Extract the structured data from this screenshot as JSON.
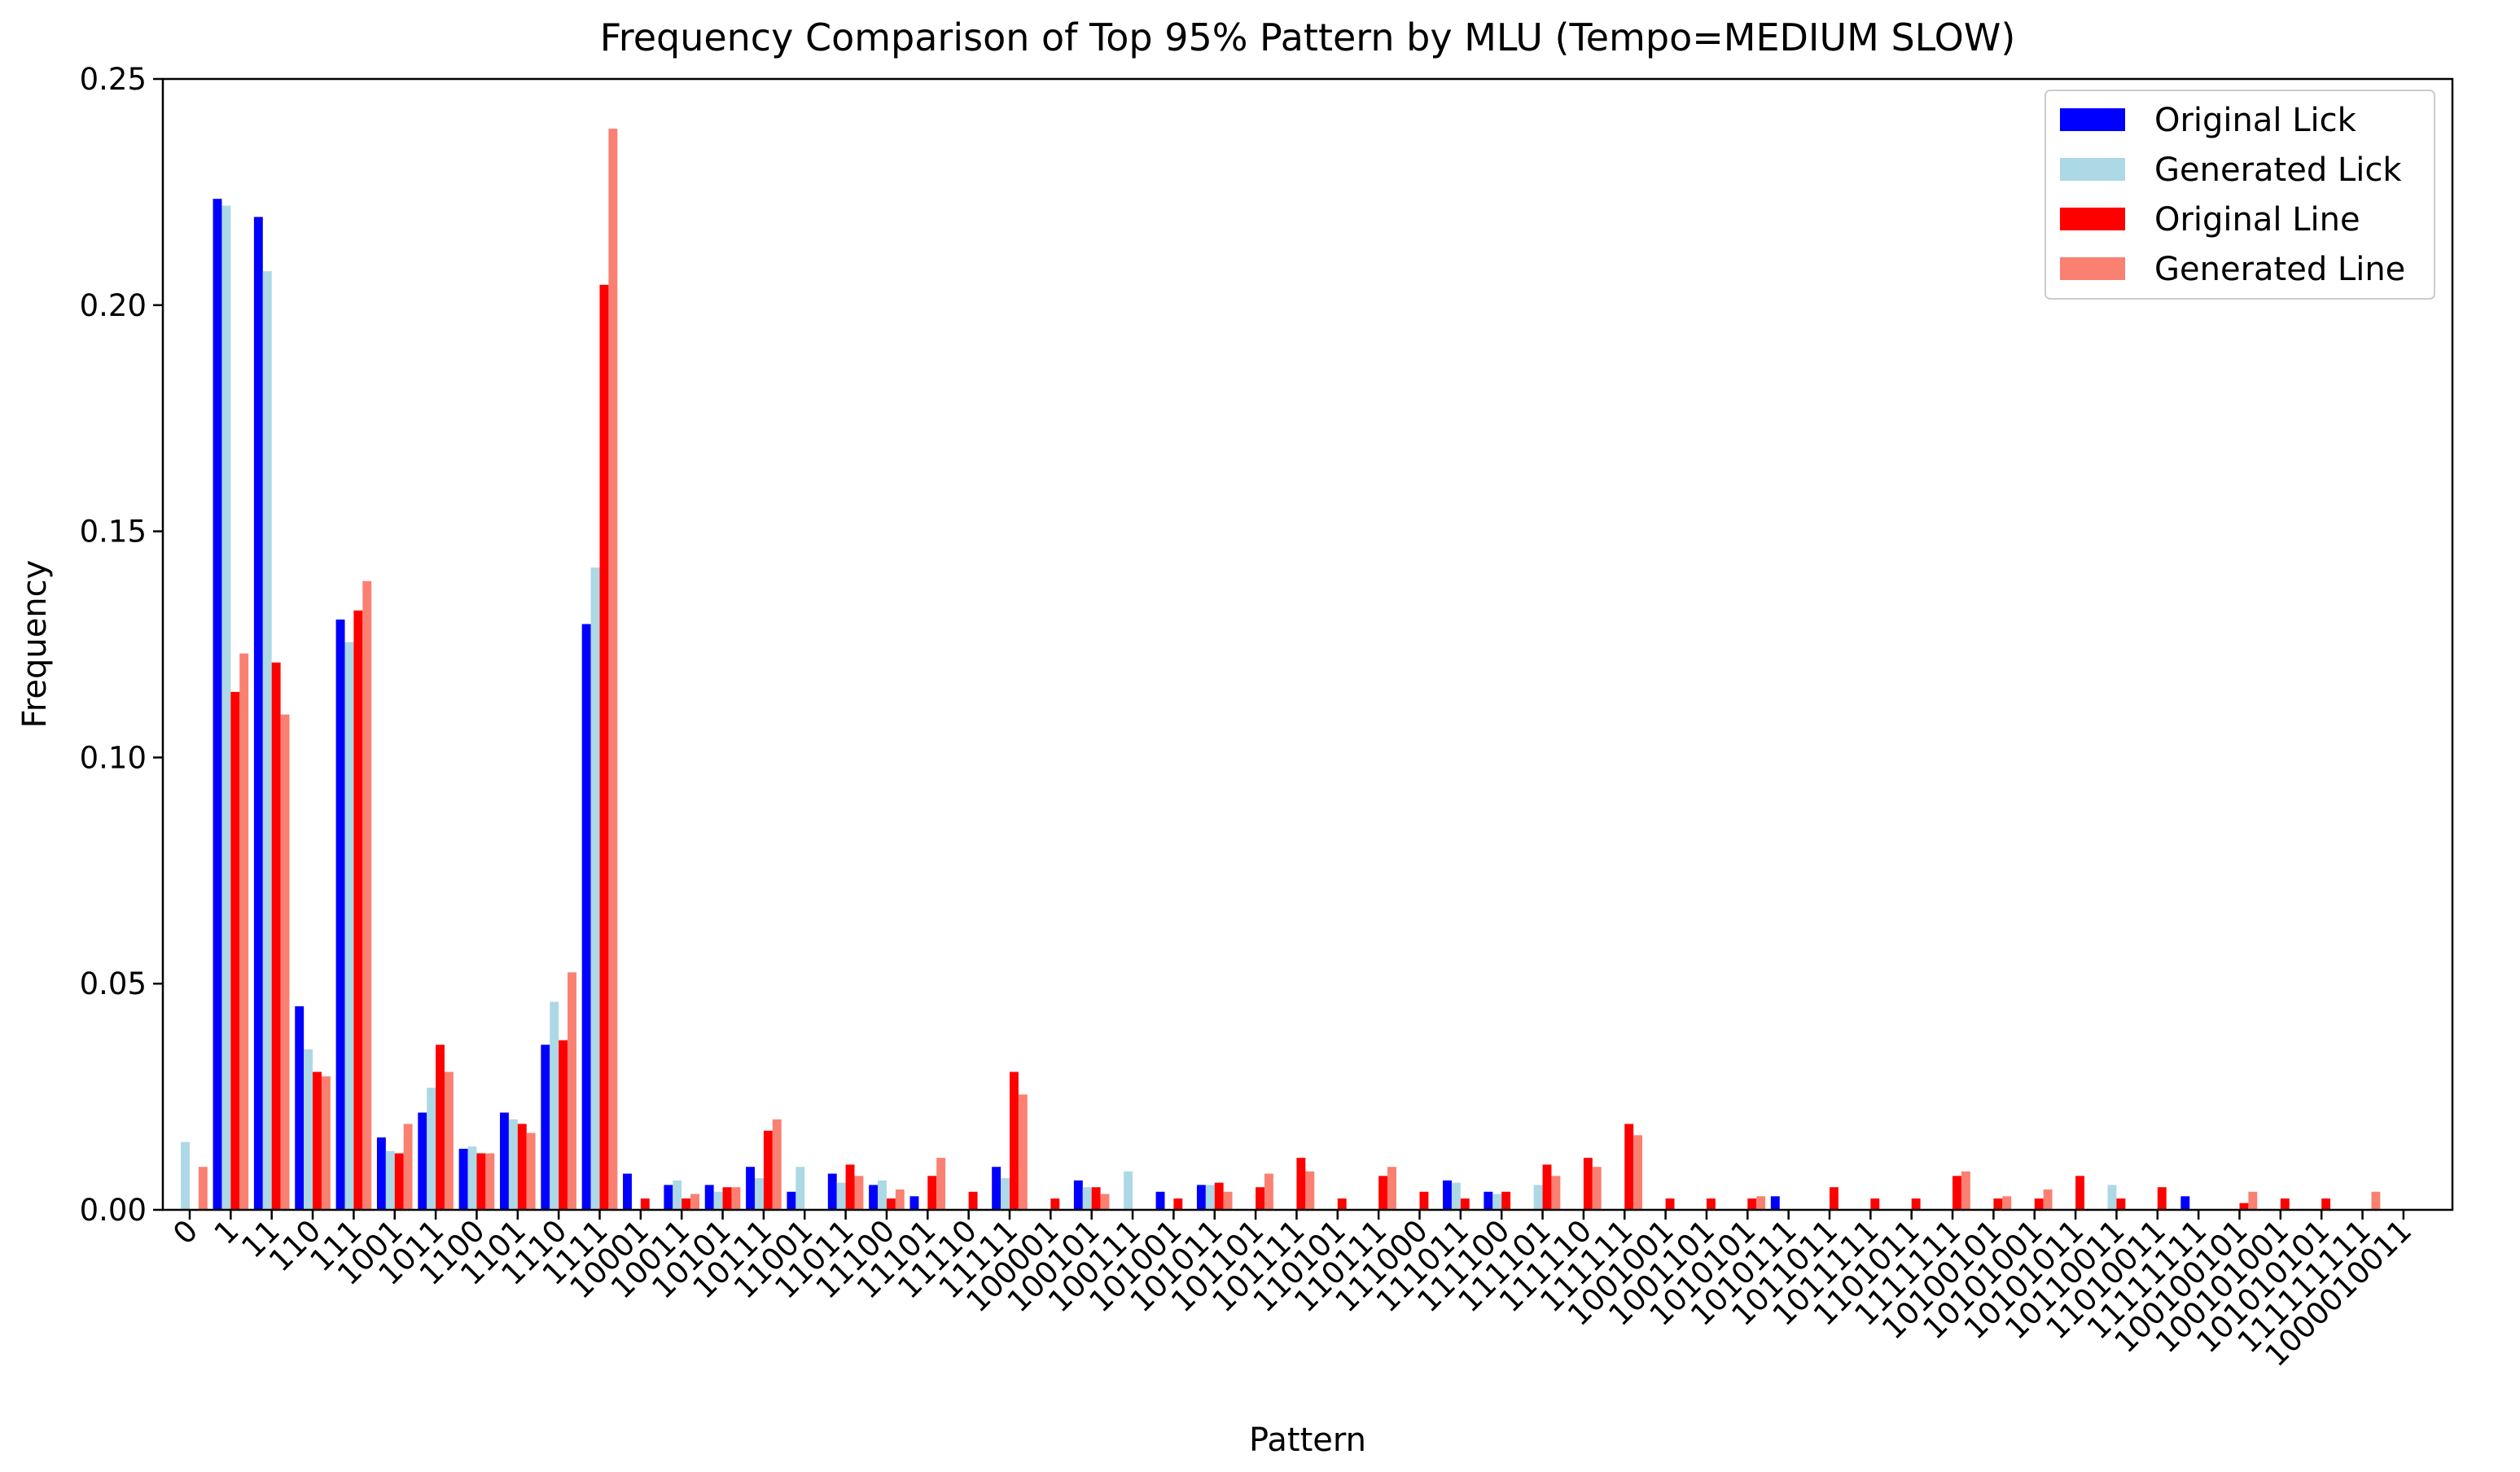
{
  "chart_data": {
    "type": "bar",
    "title": "Frequency Comparison of Top 95% Pattern by MLU (Tempo=MEDIUM SLOW)",
    "xlabel": "Pattern",
    "ylabel": "Frequency",
    "ylim": [
      0,
      0.25
    ],
    "yticks": [
      "0.00",
      "0.05",
      "0.10",
      "0.15",
      "0.20",
      "0.25"
    ],
    "grid": false,
    "legend_position": "top-right",
    "categories": [
      "0",
      "1",
      "11",
      "110",
      "111",
      "1001",
      "1011",
      "1100",
      "1101",
      "1110",
      "1111",
      "10001",
      "10011",
      "10101",
      "10111",
      "11001",
      "11011",
      "11100",
      "11101",
      "11110",
      "11111",
      "100001",
      "100101",
      "100111",
      "101001",
      "101011",
      "101101",
      "101111",
      "110101",
      "110111",
      "111000",
      "111011",
      "111100",
      "111101",
      "111110",
      "111111",
      "1001001",
      "1001101",
      "1010101",
      "1010111",
      "1011011",
      "1011111",
      "1101011",
      "1111111",
      "10100101",
      "10101001",
      "10101011",
      "10110011",
      "11010011",
      "11111111",
      "100100101",
      "100101001",
      "101010101",
      "111111111",
      "1000010011"
    ],
    "series": [
      {
        "name": "Original Lick",
        "color": "#0000ff",
        "values": [
          0,
          0.2235,
          0.2195,
          0.045,
          0.1305,
          0.016,
          0.0215,
          0.0135,
          0.0215,
          0.0365,
          0.1295,
          0.008,
          0.0055,
          0.0055,
          0.0095,
          0.004,
          0.008,
          0.0055,
          0.003,
          0,
          0.0095,
          0,
          0.0065,
          0,
          0.004,
          0.0055,
          0,
          0,
          0,
          0,
          0,
          0.0065,
          0.004,
          0,
          0,
          0,
          0,
          0,
          0,
          0.003,
          0,
          0,
          0,
          0,
          0,
          0,
          0,
          0,
          0,
          0.003,
          0,
          0,
          0,
          0,
          0
        ]
      },
      {
        "name": "Generated Lick",
        "color": "#add8e6",
        "values": [
          0.015,
          0.222,
          0.2075,
          0.0355,
          0.1255,
          0.013,
          0.027,
          0.014,
          0.02,
          0.046,
          0.142,
          0,
          0.0065,
          0.004,
          0.007,
          0.0095,
          0.006,
          0.0065,
          0,
          0,
          0.007,
          0,
          0.005,
          0.0085,
          0,
          0.0055,
          0,
          0,
          0,
          0,
          0,
          0.006,
          0.0035,
          0.0055,
          0,
          0,
          0,
          0,
          0,
          0,
          0,
          0,
          0,
          0,
          0,
          0,
          0,
          0.0055,
          0,
          0,
          0,
          0,
          0,
          0,
          0
        ]
      },
      {
        "name": "Original Line",
        "color": "#ff0000",
        "values": [
          0,
          0.1145,
          0.121,
          0.0305,
          0.1325,
          0.0125,
          0.0365,
          0.0125,
          0.019,
          0.0375,
          0.2045,
          0.0025,
          0.0025,
          0.005,
          0.0175,
          0,
          0.01,
          0.0025,
          0.0075,
          0.004,
          0.0305,
          0.0025,
          0.005,
          0,
          0.0025,
          0.006,
          0.005,
          0.0115,
          0.0025,
          0.0075,
          0.004,
          0.0025,
          0.004,
          0.01,
          0.0115,
          0.019,
          0.0025,
          0.0025,
          0.0025,
          0,
          0.005,
          0.0025,
          0.0025,
          0.0075,
          0.0025,
          0.0025,
          0.0075,
          0.0025,
          0.005,
          0,
          0.0015,
          0.0025,
          0.0025,
          0,
          0
        ]
      },
      {
        "name": "Generated Line",
        "color": "#fa8072",
        "values": [
          0.0095,
          0.123,
          0.1095,
          0.0295,
          0.139,
          0.019,
          0.0305,
          0.0125,
          0.017,
          0.0525,
          0.239,
          0,
          0.0035,
          0.005,
          0.02,
          0,
          0.0075,
          0.0045,
          0.0115,
          0,
          0.0255,
          0,
          0.0035,
          0,
          0,
          0.004,
          0.008,
          0.0085,
          0,
          0.0095,
          0,
          0,
          0,
          0.0075,
          0.0095,
          0.0165,
          0,
          0,
          0.003,
          0,
          0,
          0,
          0,
          0.0085,
          0.003,
          0.0045,
          0,
          0,
          0,
          0,
          0.004,
          0,
          0,
          0.004,
          0
        ]
      }
    ]
  }
}
